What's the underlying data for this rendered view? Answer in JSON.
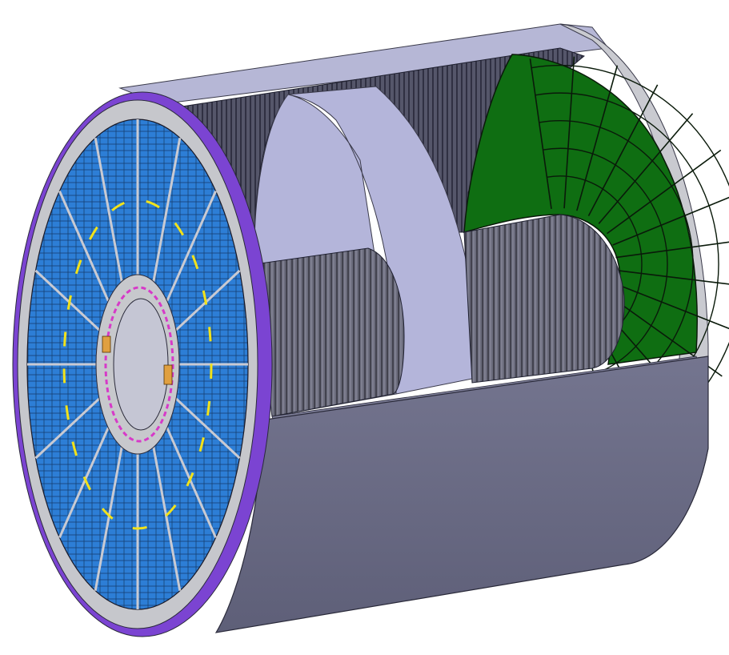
{
  "colors": {
    "background": "#ffffff",
    "outer_shell": "#6b6c86",
    "outer_shell_light": "#a9aac8",
    "inner_bore": "#b2b3d8",
    "flange": "#c7c8cc",
    "flange_purple": "#7a3fd0",
    "sector_blue": "#2f7fd6",
    "sector_dark": "#14233a",
    "green_disk": "#0f6e12",
    "cable_gray": "#5f6070",
    "yellow_ring": "#f2e21a",
    "magenta_ring": "#d63ac8",
    "orange_bracket": "#e0a040"
  },
  "components": {
    "outer_shell": "outer-cylindrical-shell",
    "endcap": "front-endcap-wheel",
    "rear_disk": "rear-green-segmented-disk",
    "inner_tubes": "inner-coiled-tubes",
    "opening": "cutaway-window"
  },
  "counts": {
    "endcap_sectors": 16,
    "green_radial_lines": 14,
    "green_rings": 5
  }
}
